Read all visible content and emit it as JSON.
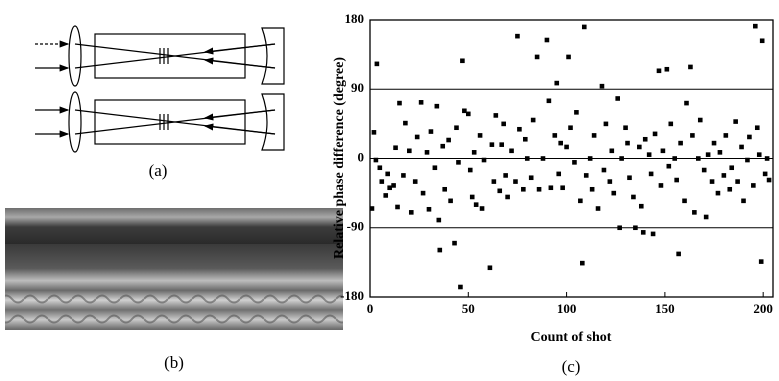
{
  "panels": {
    "a": "(a)",
    "b": "(b)",
    "c": "(c)"
  },
  "chart_data": {
    "type": "scatter",
    "y_label": "Relative phase difference (degree)",
    "x_label": "Count of shot",
    "color": "#000000",
    "grid": true,
    "xlim": [
      0,
      205
    ],
    "xticks": [
      0,
      50,
      100,
      150,
      200
    ],
    "ylim": [
      -180,
      180
    ],
    "yticks": [
      -180,
      -90,
      0,
      90,
      180
    ],
    "x": [
      1,
      2,
      3,
      3.5,
      5,
      6,
      8,
      9,
      10,
      12,
      13,
      14,
      15,
      17,
      18,
      20,
      21,
      23,
      24,
      26,
      27,
      29,
      30,
      31,
      33,
      34,
      35,
      35.5,
      37,
      38,
      40,
      41,
      43,
      44,
      45,
      46,
      47,
      48,
      50,
      51,
      52,
      53,
      54,
      56,
      57,
      58,
      61,
      62,
      63,
      64,
      66,
      67,
      68,
      69,
      70,
      72,
      74,
      75,
      76,
      78,
      79,
      80,
      82,
      83,
      85,
      86,
      88,
      90,
      91,
      92,
      94,
      95,
      96,
      97,
      98,
      100,
      101,
      102,
      104,
      105,
      107,
      108,
      109,
      110,
      112,
      113,
      114,
      116,
      118,
      119,
      120,
      122,
      123,
      124,
      126,
      127,
      128,
      130,
      131,
      132,
      134,
      135,
      137,
      138,
      139,
      140,
      142,
      143,
      144,
      145,
      147,
      148,
      149,
      151,
      152,
      153,
      155,
      156,
      157,
      158,
      160,
      161,
      163,
      164,
      165,
      167,
      168,
      170,
      171,
      172,
      174,
      175,
      177,
      178,
      180,
      181,
      183,
      184,
      186,
      187,
      189,
      190,
      192,
      193,
      195,
      196,
      197,
      198,
      199,
      199.5,
      201,
      202,
      203
    ],
    "values": [
      -65,
      34,
      -2,
      123,
      -12,
      -30,
      -48,
      -20,
      -38,
      -35,
      14,
      -63,
      72,
      -22,
      46,
      10,
      -70,
      -30,
      28,
      73,
      -45,
      8,
      -66,
      35,
      -12,
      68,
      -80,
      -119,
      16,
      -40,
      24,
      -55,
      -110,
      40,
      -5,
      -167,
      127,
      62,
      58,
      -15,
      -50,
      8,
      -60,
      30,
      -65,
      -2,
      -142,
      18,
      -30,
      56,
      -42,
      18,
      45,
      -22,
      -50,
      10,
      -30,
      159,
      38,
      -40,
      25,
      0,
      -25,
      50,
      132,
      -40,
      0,
      154,
      75,
      -38,
      30,
      98,
      -20,
      20,
      -38,
      15,
      132,
      40,
      -5,
      60,
      -55,
      -136,
      171,
      -22,
      0,
      -40,
      30,
      -65,
      94,
      -15,
      45,
      -30,
      10,
      -45,
      78,
      -90,
      0,
      40,
      20,
      -25,
      -50,
      -90,
      15,
      -62,
      -96,
      25,
      5,
      -20,
      -98,
      32,
      114,
      -35,
      10,
      116,
      -10,
      45,
      0,
      -28,
      -124,
      20,
      -55,
      72,
      119,
      30,
      -70,
      0,
      50,
      -15,
      -76,
      5,
      -30,
      20,
      -45,
      8,
      -22,
      30,
      -40,
      -12,
      48,
      -30,
      15,
      -55,
      -2,
      28,
      -35,
      172,
      40,
      5,
      -134,
      153,
      -20,
      0,
      -28
    ]
  }
}
